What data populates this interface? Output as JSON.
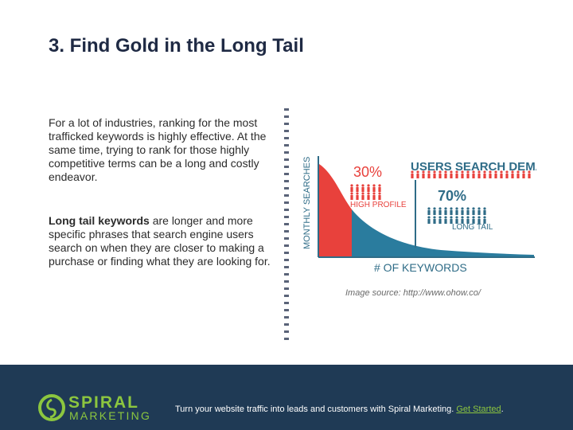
{
  "slide": {
    "title": "3. Find Gold in the Long Tail",
    "paragraph1": "For a lot of industries, ranking for the most trafficked keywords is highly effective.  At the same time, trying to rank for those highly competitive terms can be a long and costly endeavor.",
    "paragraph2_bold": "Long tail keywords",
    "paragraph2_rest": " are longer and more specific phrases that search engine users search on when they are closer to making a purchase or finding what they are looking for.",
    "image_caption": "Image source: http://www.ohow.co/"
  },
  "infographic": {
    "y_label": "MONTHLY SEARCHES",
    "x_label": "# OF KEYWORDS",
    "heading": "USERS SEARCH DEMAND",
    "high_profile_pct": "30%",
    "high_profile_label": "HIGH PROFILE",
    "long_tail_pct": "70%",
    "long_tail_label": "LONG TAIL",
    "colors": {
      "red": "#e8413c",
      "teal": "#2a7c9e",
      "dark": "#2f6c87"
    }
  },
  "footer": {
    "brand_line1": "SPIRAL",
    "brand_line2": "MARKETING",
    "text": "Turn your website traffic into leads and customers with Spiral Marketing. ",
    "link_text": "Get Started",
    "text_end": ".",
    "brand_color": "#8cc63f",
    "bg_color": "#1f3a55"
  }
}
